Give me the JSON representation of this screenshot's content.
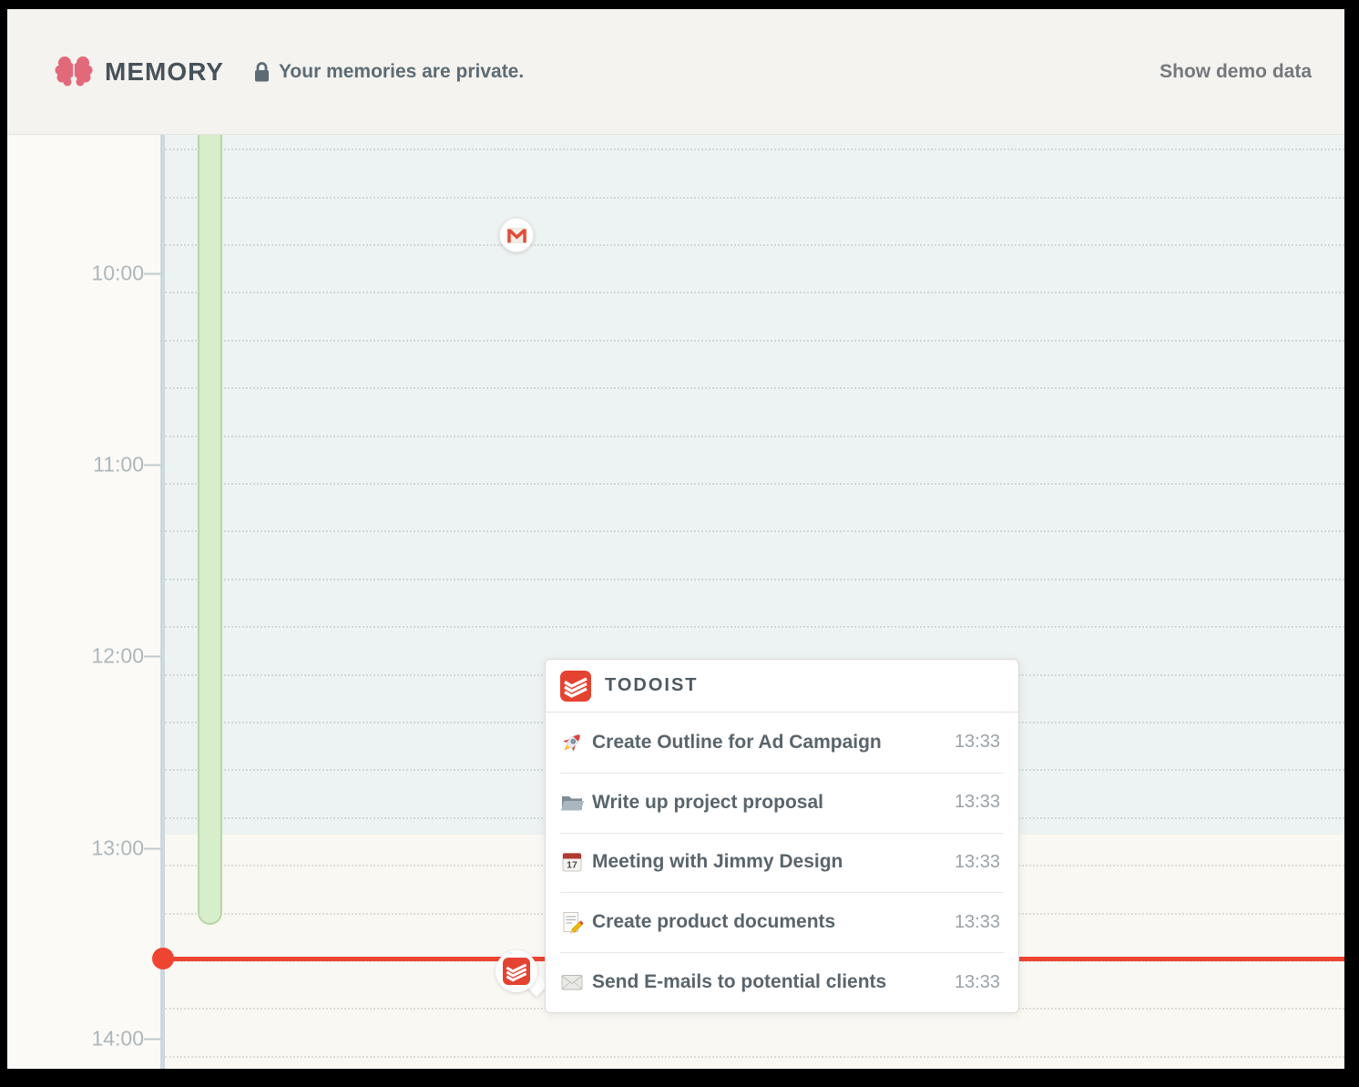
{
  "colors": {
    "brand_pink": "#e2697a",
    "accent_red": "#ee4532",
    "todoist_red": "#e44332",
    "green_fill": "#d8edca",
    "green_border": "#b5d7a5"
  },
  "header": {
    "app_name": "MEMORY",
    "privacy_note": "Your memories are private.",
    "demo_link_label": "Show demo data"
  },
  "timeline": {
    "hour_labels": [
      "10:00",
      "11:00",
      "12:00",
      "13:00",
      "14:00"
    ],
    "markers": {
      "gmail": "gmail-icon",
      "todoist": "todoist-logo"
    }
  },
  "popup": {
    "source_name": "TODOIST",
    "source_icon": "todoist-logo",
    "tasks": [
      {
        "icon": "rocket-icon",
        "title": "Create Outline for Ad Campaign",
        "time": "13:33"
      },
      {
        "icon": "folder-icon",
        "title": "Write up project proposal",
        "time": "13:33"
      },
      {
        "icon": "calendar-icon",
        "title": "Meeting with Jimmy Design",
        "time": "13:33"
      },
      {
        "icon": "memo-icon",
        "title": "Create product documents",
        "time": "13:33"
      },
      {
        "icon": "envelope-icon",
        "title": "Send E-mails to potential clients",
        "time": "13:33"
      }
    ]
  }
}
